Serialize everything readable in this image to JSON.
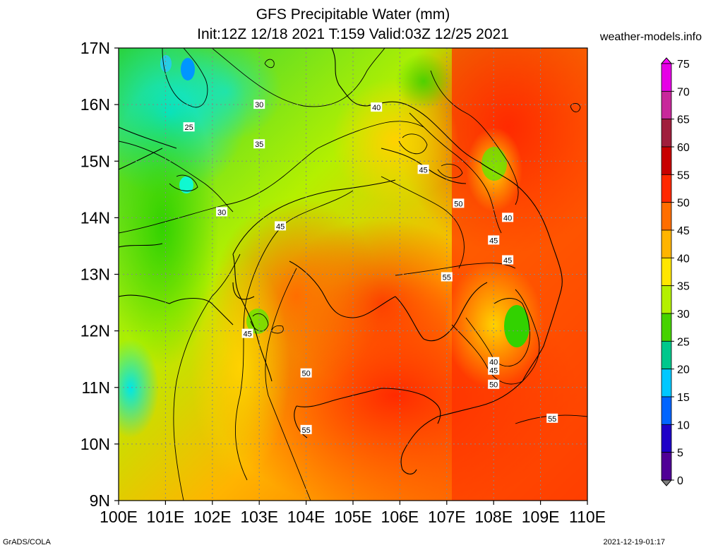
{
  "title_line1": "GFS Precipitable Water (mm)",
  "title_line2": "Init:12Z 12/18 2021 T:159 Valid:03Z 12/25 2021",
  "watermark": "weather-models.info",
  "footer_left": "GrADS/COLA",
  "footer_right": "2021-12-19-01:17",
  "y_ticks": [
    "17N",
    "16N",
    "15N",
    "14N",
    "13N",
    "12N",
    "11N",
    "10N",
    "9N"
  ],
  "x_ticks": [
    "100E",
    "101E",
    "102E",
    "103E",
    "104E",
    "105E",
    "106E",
    "107E",
    "108E",
    "109E",
    "110E"
  ],
  "colorbar": {
    "labels": [
      "75",
      "70",
      "65",
      "60",
      "55",
      "50",
      "45",
      "40",
      "35",
      "30",
      "25",
      "20",
      "15",
      "10",
      "5",
      "0"
    ],
    "colors": [
      "#ff00ff",
      "#c8289b",
      "#a01450",
      "#a50000",
      "#ff2800",
      "#ff6e00",
      "#ffaa00",
      "#ffe000",
      "#c8ff00",
      "#64e600",
      "#00c800",
      "#00ffff",
      "#0096ff",
      "#0000c8",
      "#3c0096",
      "#808080"
    ]
  },
  "contour_labels": [
    {
      "text": "25",
      "lon": 101.5,
      "lat": 15.6
    },
    {
      "text": "30",
      "lon": 103.0,
      "lat": 16.0
    },
    {
      "text": "30",
      "lon": 102.2,
      "lat": 14.1
    },
    {
      "text": "35",
      "lon": 103.0,
      "lat": 15.3
    },
    {
      "text": "40",
      "lon": 105.5,
      "lat": 15.95
    },
    {
      "text": "45",
      "lon": 106.5,
      "lat": 14.85
    },
    {
      "text": "45",
      "lon": 103.45,
      "lat": 13.85
    },
    {
      "text": "45",
      "lon": 102.75,
      "lat": 11.95
    },
    {
      "text": "50",
      "lon": 107.25,
      "lat": 14.25
    },
    {
      "text": "55",
      "lon": 107.0,
      "lat": 12.95
    },
    {
      "text": "50",
      "lon": 104.0,
      "lat": 11.25
    },
    {
      "text": "55",
      "lon": 104.0,
      "lat": 10.25
    },
    {
      "text": "40",
      "lon": 108.3,
      "lat": 14.0
    },
    {
      "text": "45",
      "lon": 108.0,
      "lat": 13.6
    },
    {
      "text": "45",
      "lon": 108.3,
      "lat": 13.25
    },
    {
      "text": "40",
      "lon": 108.0,
      "lat": 11.45
    },
    {
      "text": "45",
      "lon": 108.0,
      "lat": 11.3
    },
    {
      "text": "50",
      "lon": 108.0,
      "lat": 11.05
    },
    {
      "text": "55",
      "lon": 109.25,
      "lat": 10.45
    }
  ]
}
